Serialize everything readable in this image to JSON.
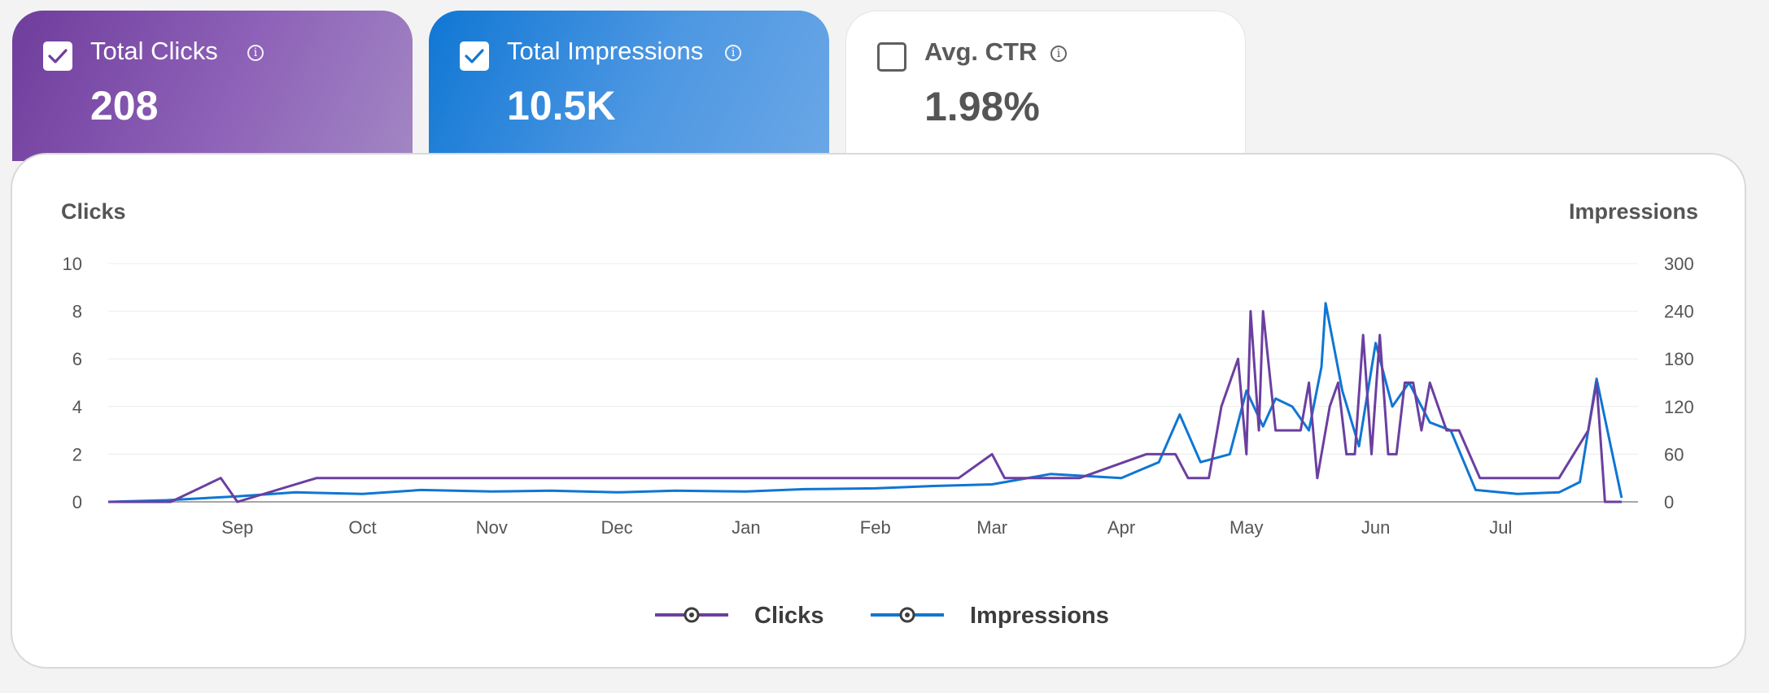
{
  "metrics": {
    "clicks": {
      "label": "Total Clicks",
      "value": "208",
      "checked": true
    },
    "impressions": {
      "label": "Total Impressions",
      "value": "10.5K",
      "checked": true
    },
    "ctr": {
      "label": "Avg. CTR",
      "value": "1.98%",
      "checked": false
    },
    "info_glyph": "i"
  },
  "colors": {
    "clicks": "#6b3fa0",
    "impressions": "#0f76d3",
    "grid": "#ececec",
    "axis": "#888888"
  },
  "icons": {
    "checkbox_checked": "check-icon",
    "info": "info-circle-icon",
    "legend_marker": "dot-circle-icon"
  },
  "chart_data": {
    "type": "line",
    "left_axis_title": "Clicks",
    "right_axis_title": "Impressions",
    "left_ylim": [
      0,
      10
    ],
    "right_ylim": [
      0,
      300
    ],
    "left_ticks": [
      "0",
      "2",
      "4",
      "6",
      "8",
      "10"
    ],
    "right_ticks": [
      "0",
      "60",
      "120",
      "180",
      "240",
      "300"
    ],
    "x_range": [
      "2024-08-01",
      "2025-07-31"
    ],
    "month_ticks": [
      {
        "label": "Sep",
        "date": "2024-09-01"
      },
      {
        "label": "Oct",
        "date": "2024-10-01"
      },
      {
        "label": "Nov",
        "date": "2024-11-01"
      },
      {
        "label": "Dec",
        "date": "2024-12-01"
      },
      {
        "label": "Jan",
        "date": "2025-01-01"
      },
      {
        "label": "Feb",
        "date": "2025-02-01"
      },
      {
        "label": "Mar",
        "date": "2025-03-01"
      },
      {
        "label": "Apr",
        "date": "2025-04-01"
      },
      {
        "label": "May",
        "date": "2025-05-01"
      },
      {
        "label": "Jun",
        "date": "2025-06-01"
      },
      {
        "label": "Jul",
        "date": "2025-07-01"
      }
    ],
    "grid": "horizontal",
    "legend_position": "bottom-center",
    "series": [
      {
        "name": "Clicks",
        "axis": "left",
        "points": [
          [
            "2024-08-01",
            0
          ],
          [
            "2024-08-08",
            0
          ],
          [
            "2024-08-16",
            0
          ],
          [
            "2024-08-28",
            1
          ],
          [
            "2024-09-01",
            0
          ],
          [
            "2024-09-20",
            1
          ],
          [
            "2024-09-28",
            1
          ],
          [
            "2024-10-08",
            1
          ],
          [
            "2024-10-13",
            1
          ],
          [
            "2024-11-01",
            1
          ],
          [
            "2024-11-09",
            1
          ],
          [
            "2024-11-23",
            1
          ],
          [
            "2024-12-04",
            1
          ],
          [
            "2024-12-08",
            1
          ],
          [
            "2024-12-11",
            1
          ],
          [
            "2024-12-26",
            1
          ],
          [
            "2025-01-05",
            1
          ],
          [
            "2025-01-12",
            1
          ],
          [
            "2025-01-15",
            1
          ],
          [
            "2025-01-21",
            1
          ],
          [
            "2025-01-30",
            1
          ],
          [
            "2025-02-15",
            1
          ],
          [
            "2025-02-21",
            1
          ],
          [
            "2025-03-01",
            2
          ],
          [
            "2025-03-04",
            1
          ],
          [
            "2025-03-12",
            1
          ],
          [
            "2025-03-17",
            1
          ],
          [
            "2025-03-22",
            1
          ],
          [
            "2025-04-07",
            2
          ],
          [
            "2025-04-14",
            2
          ],
          [
            "2025-04-17",
            1
          ],
          [
            "2025-04-22",
            1
          ],
          [
            "2025-04-25",
            4
          ],
          [
            "2025-04-29",
            6
          ],
          [
            "2025-05-01",
            2
          ],
          [
            "2025-05-02",
            8
          ],
          [
            "2025-05-04",
            3
          ],
          [
            "2025-05-05",
            8
          ],
          [
            "2025-05-08",
            3
          ],
          [
            "2025-05-11",
            3
          ],
          [
            "2025-05-14",
            3
          ],
          [
            "2025-05-16",
            5
          ],
          [
            "2025-05-18",
            1
          ],
          [
            "2025-05-21",
            4
          ],
          [
            "2025-05-23",
            5
          ],
          [
            "2025-05-25",
            2
          ],
          [
            "2025-05-27",
            2
          ],
          [
            "2025-05-29",
            7
          ],
          [
            "2025-05-31",
            2
          ],
          [
            "2025-06-02",
            7
          ],
          [
            "2025-06-04",
            2
          ],
          [
            "2025-06-06",
            2
          ],
          [
            "2025-06-08",
            5
          ],
          [
            "2025-06-10",
            5
          ],
          [
            "2025-06-12",
            3
          ],
          [
            "2025-06-14",
            5
          ],
          [
            "2025-06-16",
            4
          ],
          [
            "2025-06-18",
            3
          ],
          [
            "2025-06-21",
            3
          ],
          [
            "2025-06-26",
            1
          ],
          [
            "2025-07-02",
            1
          ],
          [
            "2025-07-09",
            1
          ],
          [
            "2025-07-15",
            1
          ],
          [
            "2025-07-22",
            3
          ],
          [
            "2025-07-24",
            5
          ],
          [
            "2025-07-26",
            0
          ],
          [
            "2025-07-30",
            0
          ]
        ]
      },
      {
        "name": "Impressions",
        "axis": "right",
        "points": [
          [
            "2024-08-01",
            0
          ],
          [
            "2024-08-15",
            2
          ],
          [
            "2024-09-01",
            7
          ],
          [
            "2024-09-15",
            12
          ],
          [
            "2024-10-01",
            10
          ],
          [
            "2024-10-15",
            15
          ],
          [
            "2024-11-01",
            13
          ],
          [
            "2024-11-15",
            14
          ],
          [
            "2024-12-01",
            12
          ],
          [
            "2024-12-15",
            14
          ],
          [
            "2025-01-01",
            13
          ],
          [
            "2025-01-15",
            16
          ],
          [
            "2025-02-01",
            17
          ],
          [
            "2025-02-15",
            20
          ],
          [
            "2025-03-01",
            22
          ],
          [
            "2025-03-15",
            35
          ],
          [
            "2025-04-01",
            30
          ],
          [
            "2025-04-10",
            50
          ],
          [
            "2025-04-15",
            110
          ],
          [
            "2025-04-20",
            50
          ],
          [
            "2025-04-27",
            60
          ],
          [
            "2025-05-01",
            140
          ],
          [
            "2025-05-05",
            95
          ],
          [
            "2025-05-08",
            130
          ],
          [
            "2025-05-12",
            120
          ],
          [
            "2025-05-16",
            90
          ],
          [
            "2025-05-19",
            170
          ],
          [
            "2025-05-20",
            250
          ],
          [
            "2025-05-24",
            140
          ],
          [
            "2025-05-28",
            70
          ],
          [
            "2025-06-01",
            200
          ],
          [
            "2025-06-05",
            120
          ],
          [
            "2025-06-09",
            150
          ],
          [
            "2025-06-14",
            100
          ],
          [
            "2025-06-19",
            90
          ],
          [
            "2025-06-25",
            15
          ],
          [
            "2025-07-05",
            10
          ],
          [
            "2025-07-15",
            12
          ],
          [
            "2025-07-20",
            25
          ],
          [
            "2025-07-24",
            155
          ],
          [
            "2025-07-27",
            80
          ],
          [
            "2025-07-30",
            5
          ]
        ]
      }
    ]
  }
}
